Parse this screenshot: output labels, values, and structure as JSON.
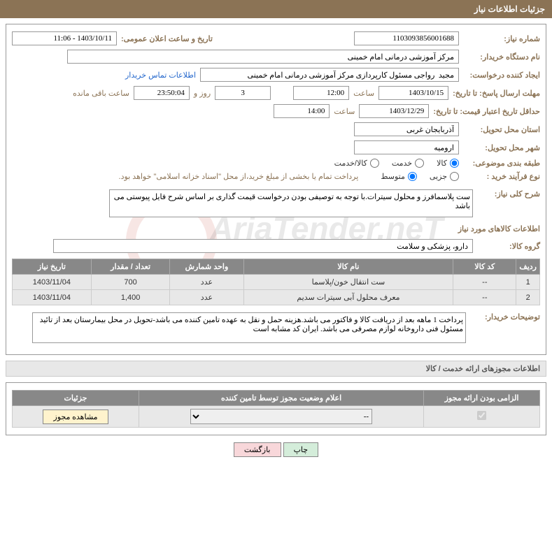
{
  "header": "جزئیات اطلاعات نیاز",
  "fields": {
    "need_no_label": "شماره نیاز:",
    "need_no": "1103093856001688",
    "announce_label": "تاریخ و ساعت اعلان عمومی:",
    "announce_value": "1403/10/11 - 11:06",
    "buyer_label": "نام دستگاه خریدار:",
    "buyer_value": "مرکز آموزشی درمانی امام خمینی",
    "creator_label": "ایجاد کننده درخواست:",
    "creator_value": "مجید  رواجی مسئول کارپردازی مرکز آموزشی درمانی امام خمینی",
    "contact_link": "اطلاعات تماس خریدار",
    "deadline_label": "مهلت ارسال پاسخ: تا تاریخ:",
    "deadline_date": "1403/10/15",
    "time_label": "ساعت",
    "deadline_time": "12:00",
    "days_remain": "3",
    "days_and": "روز و",
    "time_remain": "23:50:04",
    "remain_suffix": "ساعت باقی مانده",
    "validity_label": "حداقل تاریخ اعتبار قیمت: تا تاریخ:",
    "validity_date": "1403/12/29",
    "validity_time": "14:00",
    "province_label": "استان محل تحویل:",
    "province_value": "آذربایجان غربی",
    "city_label": "شهر محل تحویل:",
    "city_value": "ارومیه",
    "category_label": "طبقه بندی موضوعی:",
    "cat_opt1": "کالا",
    "cat_opt2": "خدمت",
    "cat_opt3": "کالا/خدمت",
    "purchase_type_label": "نوع فرآیند خرید :",
    "pt_opt1": "جزیی",
    "pt_opt2": "متوسط",
    "purchase_note": "پرداخت تمام یا بخشی از مبلغ خرید،از محل \"اسناد خزانه اسلامی\" خواهد بود.",
    "desc_label": "شرح کلی نیاز:",
    "desc_text": "ست پلاسمافرز و محلول سیترات.با توجه به توصیفی بودن درخواست قیمت گذاری بر اساس شرح فایل پیوستی می باشد",
    "items_title": "اطلاعات کالاهای مورد نیاز",
    "group_label": "گروه کالا:",
    "group_value": "دارو، پزشکی و سلامت",
    "buyer_notes_label": "توضیحات خریدار:",
    "buyer_notes": "پرداخت 1 ماهه بعد از دریافت کالا و فاکتور می باشد.هزینه حمل و نقل به عهده تامین کننده می باشد-تحویل در محل بیمارستان بعد از تائید مسئول فنی داروخانه لوازم مصرفی می باشد. ایران کد مشابه است",
    "license_title": "اطلاعات مجوزهای ارائه خدمت / کالا",
    "btn_print": "چاپ",
    "btn_back": "بازگشت",
    "btn_view": "مشاهده مجوز"
  },
  "table1": {
    "headers": [
      "ردیف",
      "کد کالا",
      "نام کالا",
      "واحد شمارش",
      "تعداد / مقدار",
      "تاریخ نیاز"
    ],
    "rows": [
      [
        "1",
        "--",
        "ست انتقال خون/پلاسما",
        "عدد",
        "700",
        "1403/11/04"
      ],
      [
        "2",
        "--",
        "معرف محلول آبی سیترات سدیم",
        "عدد",
        "1,400",
        "1403/11/04"
      ]
    ]
  },
  "table2": {
    "headers": [
      "الزامی بودن ارائه مجوز",
      "اعلام وضعیت مجوز توسط تامین کننده",
      "جزئیات"
    ],
    "select_value": "--"
  },
  "watermark_text": "AriaTender.neT"
}
